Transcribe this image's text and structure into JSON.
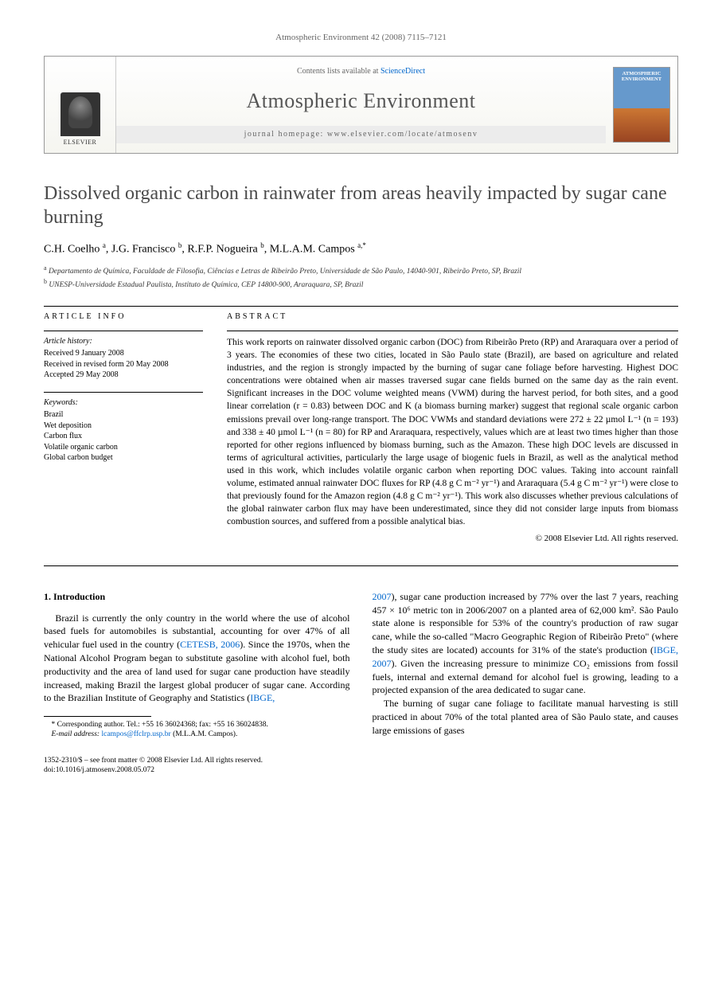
{
  "running_head": "Atmospheric Environment 42 (2008) 7115–7121",
  "masthead": {
    "elsevier": "ELSEVIER",
    "contents_prefix": "Contents lists available at ",
    "contents_link": "ScienceDirect",
    "journal": "Atmospheric Environment",
    "homepage_prefix": "journal homepage: ",
    "homepage_url": "www.elsevier.com/locate/atmosenv",
    "cover_label": "ATMOSPHERIC ENVIRONMENT"
  },
  "title": "Dissolved organic carbon in rainwater from areas heavily impacted by sugar cane burning",
  "authors_html": "C.H. Coelho <sup>a</sup>, J.G. Francisco <sup>b</sup>, R.F.P. Nogueira <sup>b</sup>, M.L.A.M. Campos <sup>a,*</sup>",
  "affiliations": {
    "a": "Departamento de Química, Faculdade de Filosofia, Ciências e Letras de Ribeirão Preto, Universidade de São Paulo, 14040-901, Ribeirão Preto, SP, Brazil",
    "b": "UNESP-Universidade Estadual Paulista, Instituto de Química, CEP 14800-900, Araraquara, SP, Brazil"
  },
  "article_info": {
    "heading": "ARTICLE INFO",
    "history_label": "Article history:",
    "history": [
      "Received 9 January 2008",
      "Received in revised form 20 May 2008",
      "Accepted 29 May 2008"
    ],
    "keywords_label": "Keywords:",
    "keywords": [
      "Brazil",
      "Wet deposition",
      "Carbon flux",
      "Volatile organic carbon",
      "Global carbon budget"
    ]
  },
  "abstract": {
    "heading": "ABSTRACT",
    "text": "This work reports on rainwater dissolved organic carbon (DOC) from Ribeirão Preto (RP) and Araraquara over a period of 3 years. The economies of these two cities, located in São Paulo state (Brazil), are based on agriculture and related industries, and the region is strongly impacted by the burning of sugar cane foliage before harvesting. Highest DOC concentrations were obtained when air masses traversed sugar cane fields burned on the same day as the rain event. Significant increases in the DOC volume weighted means (VWM) during the harvest period, for both sites, and a good linear correlation (r = 0.83) between DOC and K (a biomass burning marker) suggest that regional scale organic carbon emissions prevail over long-range transport. The DOC VWMs and standard deviations were 272 ± 22 µmol L⁻¹ (n = 193) and 338 ± 40 µmol L⁻¹ (n = 80) for RP and Araraquara, respectively, values which are at least two times higher than those reported for other regions influenced by biomass burning, such as the Amazon. These high DOC levels are discussed in terms of agricultural activities, particularly the large usage of biogenic fuels in Brazil, as well as the analytical method used in this work, which includes volatile organic carbon when reporting DOC values. Taking into account rainfall volume, estimated annual rainwater DOC fluxes for RP (4.8 g C m⁻² yr⁻¹) and Araraquara (5.4 g C m⁻² yr⁻¹) were close to that previously found for the Amazon region (4.8 g C m⁻² yr⁻¹). This work also discusses whether previous calculations of the global rainwater carbon flux may have been underestimated, since they did not consider large inputs from biomass combustion sources, and suffered from a possible analytical bias.",
    "copyright": "© 2008 Elsevier Ltd. All rights reserved."
  },
  "intro": {
    "heading": "1. Introduction",
    "col1_p1_a": "Brazil is currently the only country in the world where the use of alcohol based fuels for automobiles is substantial, accounting for over 47% of all vehicular fuel used in the country (",
    "ref1": "CETESB, 2006",
    "col1_p1_b": "). Since the 1970s, when the National Alcohol Program began to substitute gasoline with alcohol fuel, both productivity and the area of land used for sugar cane production have steadily increased, making Brazil the largest global producer of sugar cane. According to the Brazilian Institute of Geography and Statistics (",
    "ref2": "IBGE,",
    "col2_p1_a": "2007",
    "col2_p1_b": "), sugar cane production increased by 77% over the last 7 years, reaching 457 × 10⁶ metric ton in 2006/2007 on a planted area of 62,000 km². São Paulo state alone is responsible for 53% of the country's production of raw sugar cane, while the so-called \"Macro Geographic Region of Ribeirão Preto\" (where the study sites are located) accounts for 31% of the state's production (",
    "ref3": "IBGE, 2007",
    "col2_p1_c": "). Given the increasing pressure to minimize CO₂ emissions from fossil fuels, internal and external demand for alcohol fuel is growing, leading to a projected expansion of the area dedicated to sugar cane.",
    "col2_p2": "The burning of sugar cane foliage to facilitate manual harvesting is still practiced in about 70% of the total planted area of São Paulo state, and causes large emissions of gases"
  },
  "footnote": {
    "corr_label": "* Corresponding author. Tel.: +55 16 36024368; fax: +55 16 36024838.",
    "email_label": "E-mail address:",
    "email": "lcampos@ffclrp.usp.br",
    "email_suffix": "(M.L.A.M. Campos)."
  },
  "footer": {
    "line1": "1352-2310/$ – see front matter © 2008 Elsevier Ltd. All rights reserved.",
    "line2": "doi:10.1016/j.atmosenv.2008.05.072"
  }
}
